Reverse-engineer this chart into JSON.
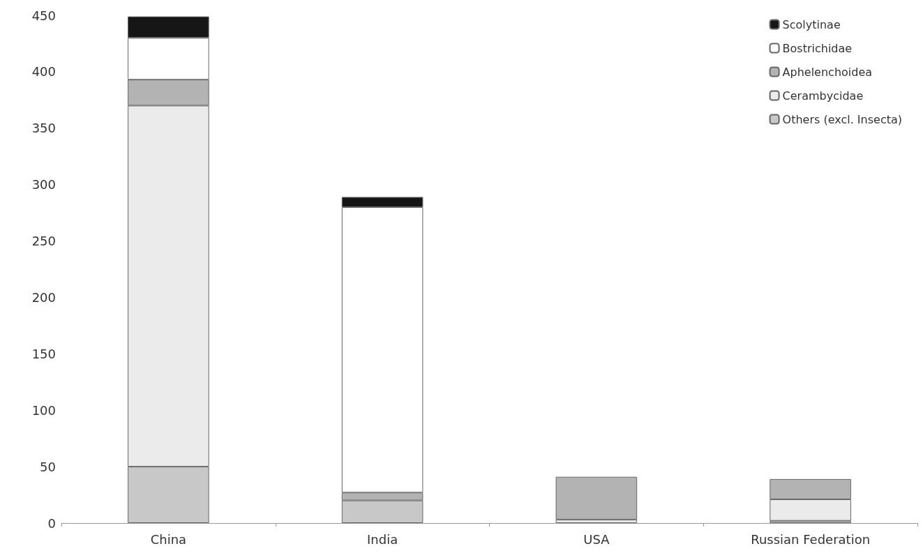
{
  "chart_data": {
    "type": "bar",
    "stacked": true,
    "categories": [
      "China",
      "India",
      "USA",
      "Russian Federation"
    ],
    "series": [
      {
        "name": "Others (excl. Insecta)",
        "color": "#c8c8c8",
        "values": [
          50,
          20,
          null,
          2
        ]
      },
      {
        "name": "Cerambycidae",
        "color": "#ebebeb",
        "values": [
          320,
          null,
          3,
          19
        ]
      },
      {
        "name": "Aphelenchoidea",
        "color": "#b3b3b3",
        "values": [
          23,
          7,
          38,
          18
        ]
      },
      {
        "name": "Bostrichidae",
        "color": "#ffffff",
        "values": [
          37,
          253,
          null,
          null
        ]
      },
      {
        "name": "Scolytinae",
        "color": "#161616",
        "values": [
          19,
          9,
          null,
          null
        ]
      }
    ],
    "ylim": [
      0,
      450
    ],
    "yticks": [
      0,
      50,
      100,
      150,
      200,
      250,
      300,
      350,
      400,
      450
    ],
    "grid": false,
    "legend": "top right"
  }
}
